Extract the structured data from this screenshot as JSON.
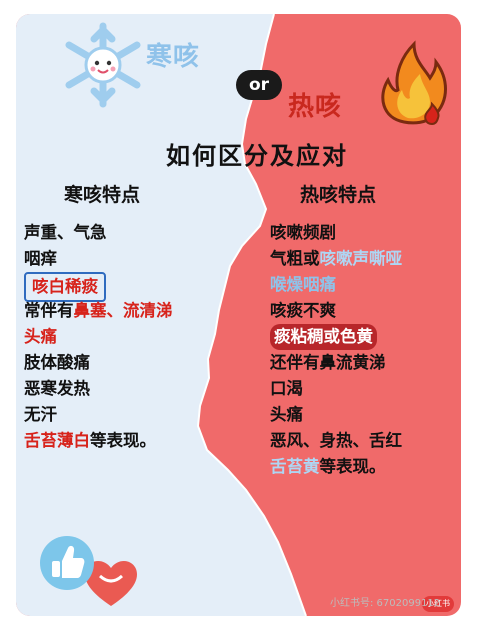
{
  "header": {
    "cold_title": "寒咳",
    "or_text": "or",
    "hot_title": "热咳",
    "subtitle": "如何区分及应对"
  },
  "cold": {
    "heading": "寒咳特点",
    "items": [
      {
        "text": "声重、气急"
      },
      {
        "text": "咽痒"
      },
      {
        "text": "咳白稀痰"
      },
      {
        "a": "常伴有",
        "b": "鼻塞",
        "c": "、",
        "d": "流清涕"
      },
      {
        "text": "头痛"
      },
      {
        "text": "肢体酸痛"
      },
      {
        "text": "恶寒发热"
      },
      {
        "text": "无汗"
      },
      {
        "a": "舌苔薄白",
        "b": "等表现。"
      }
    ]
  },
  "hot": {
    "heading": "热咳特点",
    "items": [
      {
        "text": "咳嗽频剧"
      },
      {
        "a": "气粗或",
        "b": "咳嗽声嘶哑"
      },
      {
        "text": "喉燥咽痛"
      },
      {
        "text": "咳痰不爽"
      },
      {
        "text": "痰粘稠或色黄"
      },
      {
        "text": "还伴有鼻流黄涕"
      },
      {
        "text": "口渴"
      },
      {
        "text": "头痛"
      },
      {
        "text": "恶风、身热、舌红"
      },
      {
        "a": "舌苔黄",
        "b": "等表现。"
      }
    ]
  },
  "footer": {
    "watermark": "小红书号: 6702099112",
    "logo_text": "小红书"
  },
  "colors": {
    "cold_bg": "#e4eef8",
    "hot_bg": "#f06a6a",
    "accent_red": "#d7231b",
    "accent_blue": "#8ec3ea"
  },
  "icons": [
    "snowflake-icon",
    "flame-icon",
    "thumbs-up-icon",
    "heart-icon"
  ]
}
